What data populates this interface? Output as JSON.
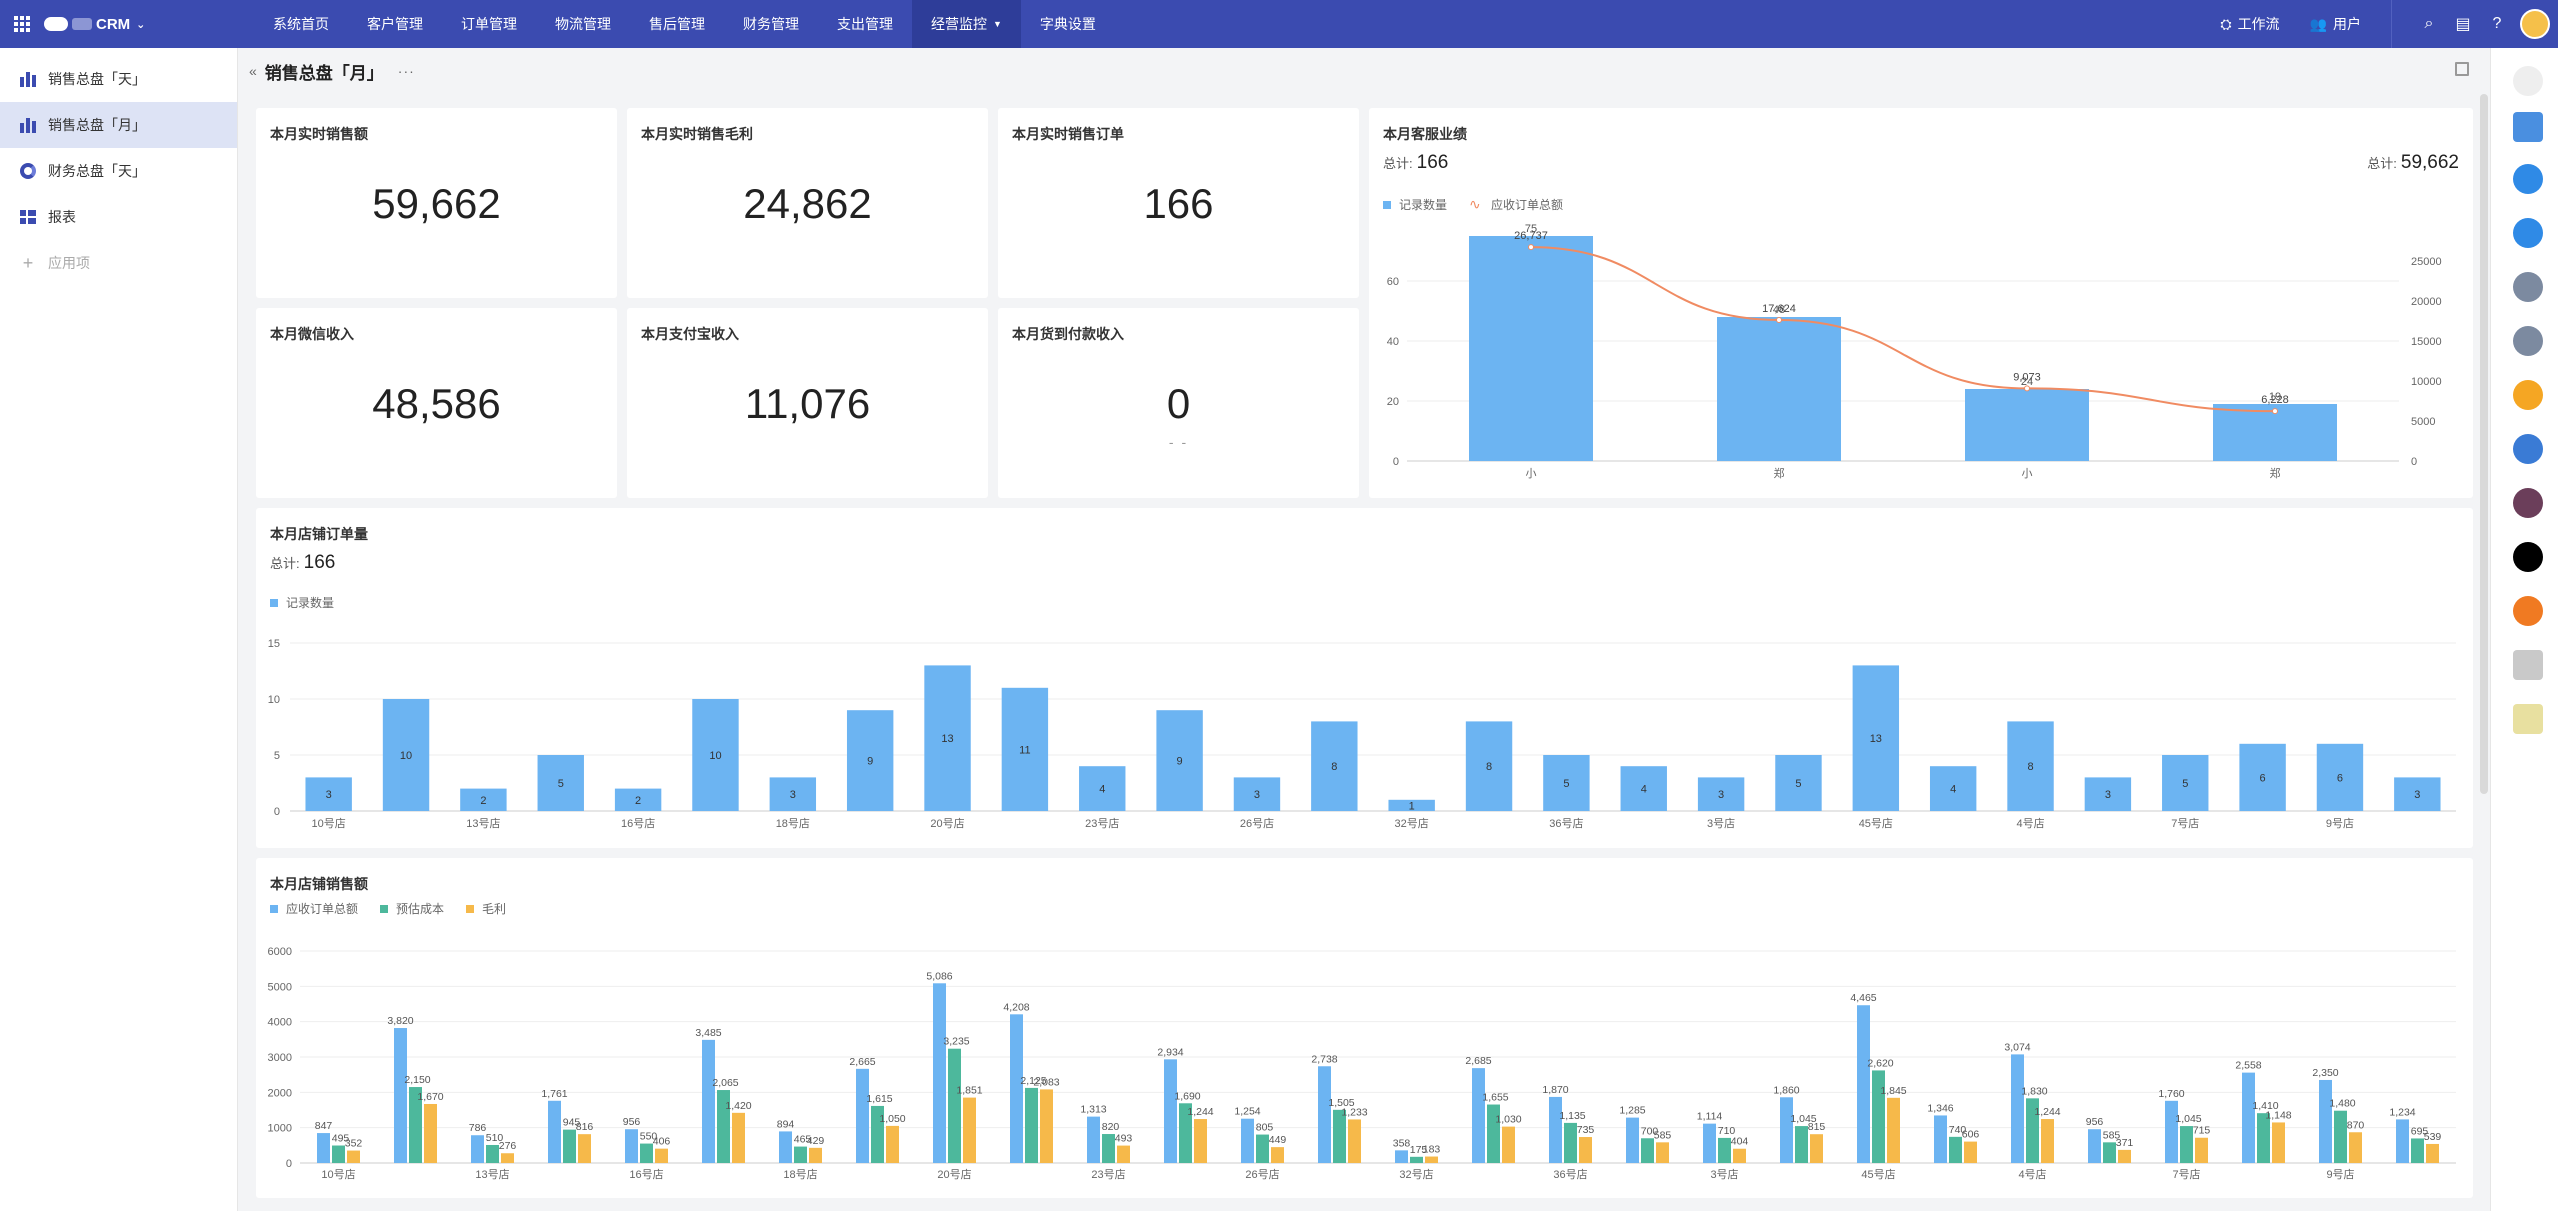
{
  "topbar": {
    "brand": "CRM",
    "nav": [
      {
        "label": "系统首页",
        "active": false
      },
      {
        "label": "客户管理",
        "active": false
      },
      {
        "label": "订单管理",
        "active": false
      },
      {
        "label": "物流管理",
        "active": false
      },
      {
        "label": "售后管理",
        "active": false
      },
      {
        "label": "财务管理",
        "active": false
      },
      {
        "label": "支出管理",
        "active": false
      },
      {
        "label": "经营监控",
        "active": true
      },
      {
        "label": "字典设置",
        "active": false
      }
    ],
    "workbench": "工作流",
    "users": "用户"
  },
  "sidebar": {
    "items": [
      {
        "label": "销售总盘「天」",
        "icon": "bar-chart-icon"
      },
      {
        "label": "销售总盘「月」",
        "icon": "bar-chart-icon"
      },
      {
        "label": "财务总盘「天」",
        "icon": "donut-chart-icon"
      },
      {
        "label": "报表",
        "icon": "table-icon"
      }
    ],
    "add_label": "应用项"
  },
  "page": {
    "title": "销售总盘「月」",
    "more": "···"
  },
  "kpis": [
    {
      "title": "本月实时销售额",
      "value": "59,662"
    },
    {
      "title": "本月实时销售毛利",
      "value": "24,862"
    },
    {
      "title": "本月实时销售订单",
      "value": "166"
    },
    {
      "title": "本月微信收入",
      "value": "48,586"
    },
    {
      "title": "本月支付宝收入",
      "value": "11,076"
    },
    {
      "title": "本月货到付款收入",
      "value": "0",
      "sub": "- -"
    }
  ],
  "colors": {
    "blue": "#6cb4f2",
    "teal": "#4db89c",
    "orange": "#f6b94a",
    "line": "#f08b62",
    "nav": "#3b4bb0"
  },
  "service_chart": {
    "title": "本月客服业绩",
    "total_label": "总计:",
    "total_left": "166",
    "total_right": "59,662",
    "legend": [
      "记录数量",
      "应收订单总额"
    ],
    "chart_data": {
      "type": "bar",
      "categories": [
        "小",
        "郑",
        "小",
        "郑"
      ],
      "series": [
        {
          "name": "记录数量",
          "values": [
            75,
            48,
            24,
            19
          ]
        },
        {
          "name": "应收订单总额",
          "values": [
            26737,
            17624,
            9073,
            6228
          ]
        }
      ],
      "bar_labels": [
        "75",
        "48",
        "24",
        "19"
      ],
      "line_labels": [
        "26,737",
        "17,624",
        "9,073",
        "6,228"
      ],
      "ylim_left": [
        0,
        80
      ],
      "yticks_left": [
        "0",
        "20",
        "40",
        "60"
      ],
      "ylim_right": [
        0,
        30000
      ],
      "yticks_right": [
        "0",
        "5000",
        "10000",
        "15000",
        "20000",
        "25000"
      ]
    }
  },
  "store_orders": {
    "title": "本月店铺订单量",
    "total_label": "总计:",
    "total": "166",
    "legend": [
      "记录数量"
    ],
    "chart_data": {
      "type": "bar",
      "values": [
        3,
        10,
        2,
        5,
        2,
        10,
        3,
        9,
        13,
        11,
        4,
        9,
        3,
        8,
        1,
        8,
        5,
        4,
        3,
        5,
        13,
        4,
        8,
        3,
        5,
        6,
        6,
        3
      ],
      "tick_labels": [
        "10号店",
        "13号店",
        "16号店",
        "18号店",
        "20号店",
        "23号店",
        "26号店",
        "32号店",
        "36号店",
        "3号店",
        "45号店",
        "4号店",
        "7号店",
        "9号店"
      ],
      "ylim": [
        0,
        15
      ],
      "yticks": [
        "0",
        "5",
        "10",
        "15"
      ]
    }
  },
  "store_sales": {
    "title": "本月店铺销售额",
    "legend": [
      "应收订单总额",
      "预估成本",
      "毛利"
    ],
    "chart_data": {
      "type": "bar",
      "series": [
        {
          "name": "应收订单总额",
          "values": [
            847,
            3820,
            786,
            1761,
            956,
            3485,
            894,
            2665,
            5086,
            4208,
            1313,
            2934,
            1254,
            2738,
            358,
            2685,
            1870,
            1285,
            1114,
            1860,
            4465,
            1346,
            3074,
            956,
            1760,
            2558,
            2350,
            1234
          ]
        },
        {
          "name": "预估成本",
          "values": [
            495,
            2150,
            510,
            945,
            550,
            2065,
            465,
            1615,
            3235,
            2125,
            820,
            1690,
            805,
            1505,
            175,
            1655,
            1135,
            700,
            710,
            1045,
            2620,
            740,
            1830,
            585,
            1045,
            1410,
            1480,
            695
          ]
        },
        {
          "name": "毛利",
          "values": [
            352,
            1670,
            276,
            816,
            406,
            1420,
            429,
            1050,
            1851,
            2083,
            493,
            1244,
            449,
            1233,
            183,
            1030,
            735,
            585,
            404,
            815,
            1845,
            606,
            1244,
            371,
            715,
            1148,
            870,
            539
          ]
        }
      ],
      "labels_total": [
        "847",
        "3,820",
        "786",
        "1,761",
        "956",
        "3,485",
        "894",
        "2,665",
        "5,086",
        "4,208",
        "1,313",
        "2,934",
        "1,254",
        "2,738",
        "358",
        "2,685",
        "1,870",
        "1,285",
        "1,114",
        "1,860",
        "4,465",
        "1,346",
        "3,074",
        "956",
        "1,760",
        "2,558",
        "2,350",
        "1,234"
      ],
      "labels_cost": [
        "495",
        "2,150",
        "510",
        "945",
        "550",
        "2,065",
        "465",
        "1,615",
        "3,235",
        "2,125",
        "820",
        "1,690",
        "805",
        "1,505",
        "175",
        "1,655",
        "1,135",
        "700",
        "710",
        "1,045",
        "2,620",
        "740",
        "1,830",
        "585",
        "1,045",
        "1,410",
        "1,480",
        "695"
      ],
      "labels_profit": [
        "352",
        "1,670",
        "276",
        "816",
        "406",
        "1,420",
        "429",
        "1,050",
        "1,851",
        "2,083",
        "493",
        "1,244",
        "449",
        "1,233",
        "183",
        "1,030",
        "735",
        "585",
        "404",
        "815",
        "1,845",
        "606",
        "1,244",
        "371",
        "715",
        "1,148",
        "870",
        "539"
      ],
      "tick_labels": [
        "10号店",
        "13号店",
        "16号店",
        "18号店",
        "20号店",
        "23号店",
        "26号店",
        "32号店",
        "36号店",
        "3号店",
        "45号店",
        "4号店",
        "7号店",
        "9号店"
      ],
      "ylim": [
        0,
        6000
      ],
      "yticks": [
        "0",
        "1000",
        "2000",
        "3000",
        "4000",
        "5000",
        "6000"
      ]
    }
  }
}
